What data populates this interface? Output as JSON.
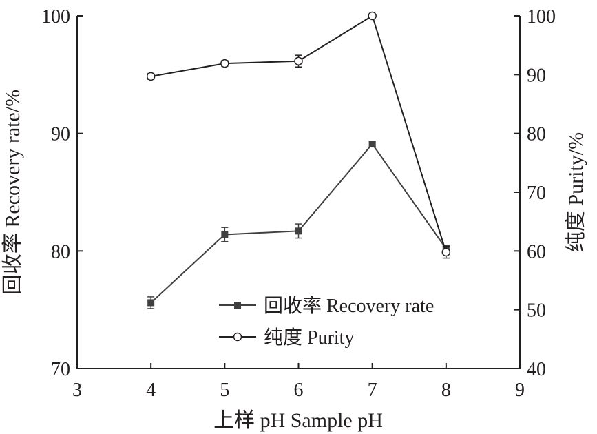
{
  "chart_data": {
    "type": "line",
    "xlabel": "上样 pH Sample pH",
    "ylabel_left": "回收率 Recovery rate/%",
    "ylabel_right": "纯度 Purity/%",
    "xlim": [
      3,
      9
    ],
    "ylim_left": [
      70,
      100
    ],
    "ylim_right": [
      40,
      100
    ],
    "x_ticks": [
      "3",
      "4",
      "5",
      "6",
      "7",
      "8",
      "9"
    ],
    "y_left_ticks": [
      "70",
      "80",
      "90",
      "100"
    ],
    "y_right_ticks": [
      "40",
      "50",
      "60",
      "70",
      "80",
      "90",
      "100"
    ],
    "grid": false,
    "legend_placement": "bottom-center",
    "series": [
      {
        "name": "回收率 Recovery rate",
        "axis": "left",
        "marker": "filled-square",
        "x": [
          4,
          5,
          6,
          7,
          8
        ],
        "values": [
          75.6,
          81.4,
          81.7,
          89.1,
          80.2
        ],
        "errors": [
          0.5,
          0.6,
          0.6,
          0.2,
          0.3
        ]
      },
      {
        "name": "纯度 Purity",
        "axis": "right",
        "marker": "open-circle",
        "x": [
          4,
          5,
          6,
          7,
          8
        ],
        "values": [
          89.7,
          91.9,
          92.3,
          100,
          59.8
        ],
        "errors": [
          0.5,
          0.5,
          1.0,
          0.3,
          1.0
        ]
      }
    ],
    "colors": {
      "axis": "#231f20",
      "recovery": "#404040",
      "purity": "#231f20"
    }
  }
}
